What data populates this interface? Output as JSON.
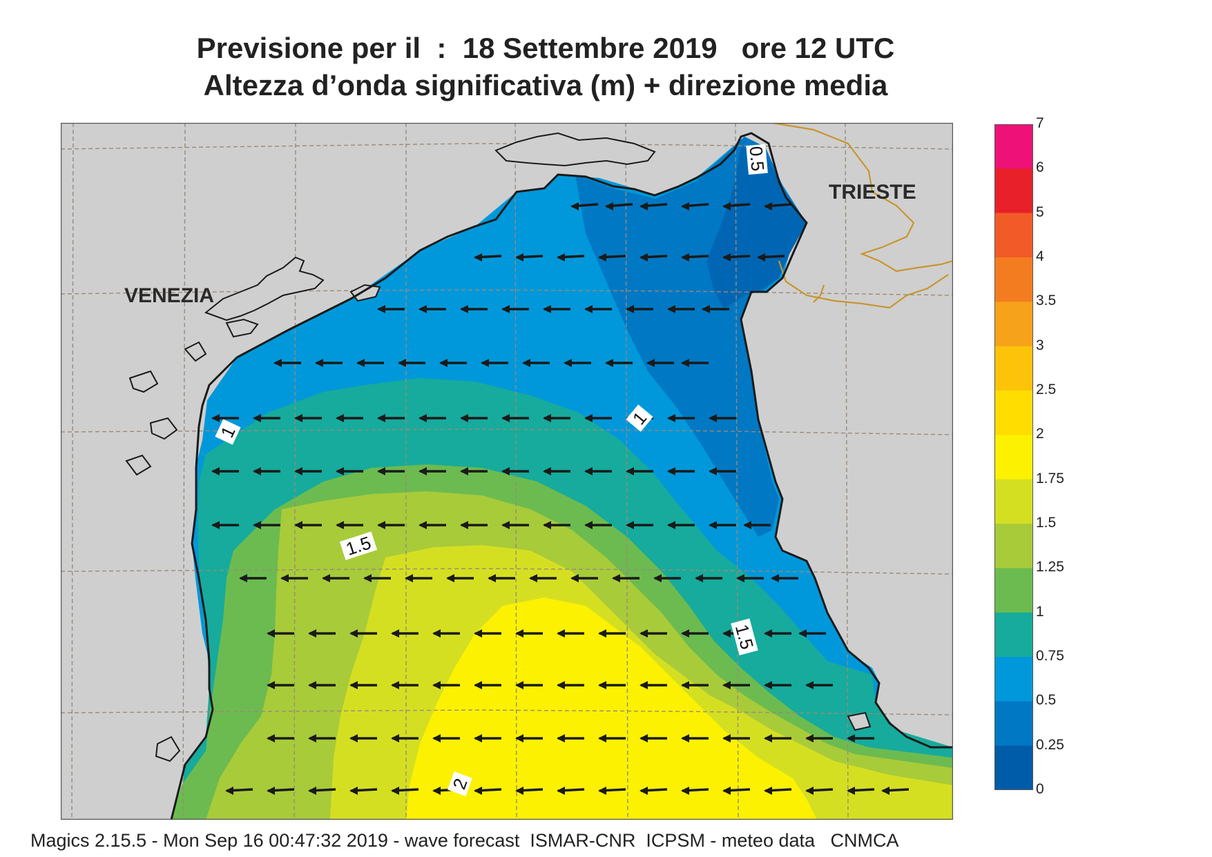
{
  "title": {
    "line1": "Previsione per il  :  18 Settembre 2019   ore 12 UTC",
    "line2": "Altezza d’onda significativa (m) + direzione media"
  },
  "cities": [
    "VENEZIA",
    "TRIESTE"
  ],
  "contour_labels": [
    "0.5",
    "1",
    "1",
    "1.5",
    "1.5",
    "2"
  ],
  "legend": {
    "levels": [
      "7",
      "6",
      "5",
      "4",
      "3.5",
      "3",
      "2.5",
      "2",
      "1.75",
      "1.5",
      "1.25",
      "1",
      "0.75",
      "0.5",
      "0.25",
      "0"
    ],
    "colors": [
      "#ee1177",
      "#e8202a",
      "#f25a28",
      "#f47c20",
      "#f7a21b",
      "#fcc30a",
      "#ffdd00",
      "#fbf100",
      "#d5df22",
      "#a8cb3a",
      "#6cbb50",
      "#16ab9c",
      "#0098da",
      "#0078c3",
      "#005ca8",
      "#004a97"
    ]
  },
  "colors": {
    "land": "#cfcfcf",
    "grid": "#9a8a78",
    "border": "#c8952e",
    "coast": "#1a1a1a"
  },
  "footer": "Magics 2.15.5 - Mon Sep 16 00:47:32 2019 - wave forecast  ISMAR-CNR  ICPSM - meteo data   CNMCA",
  "arrow_direction": "west"
}
